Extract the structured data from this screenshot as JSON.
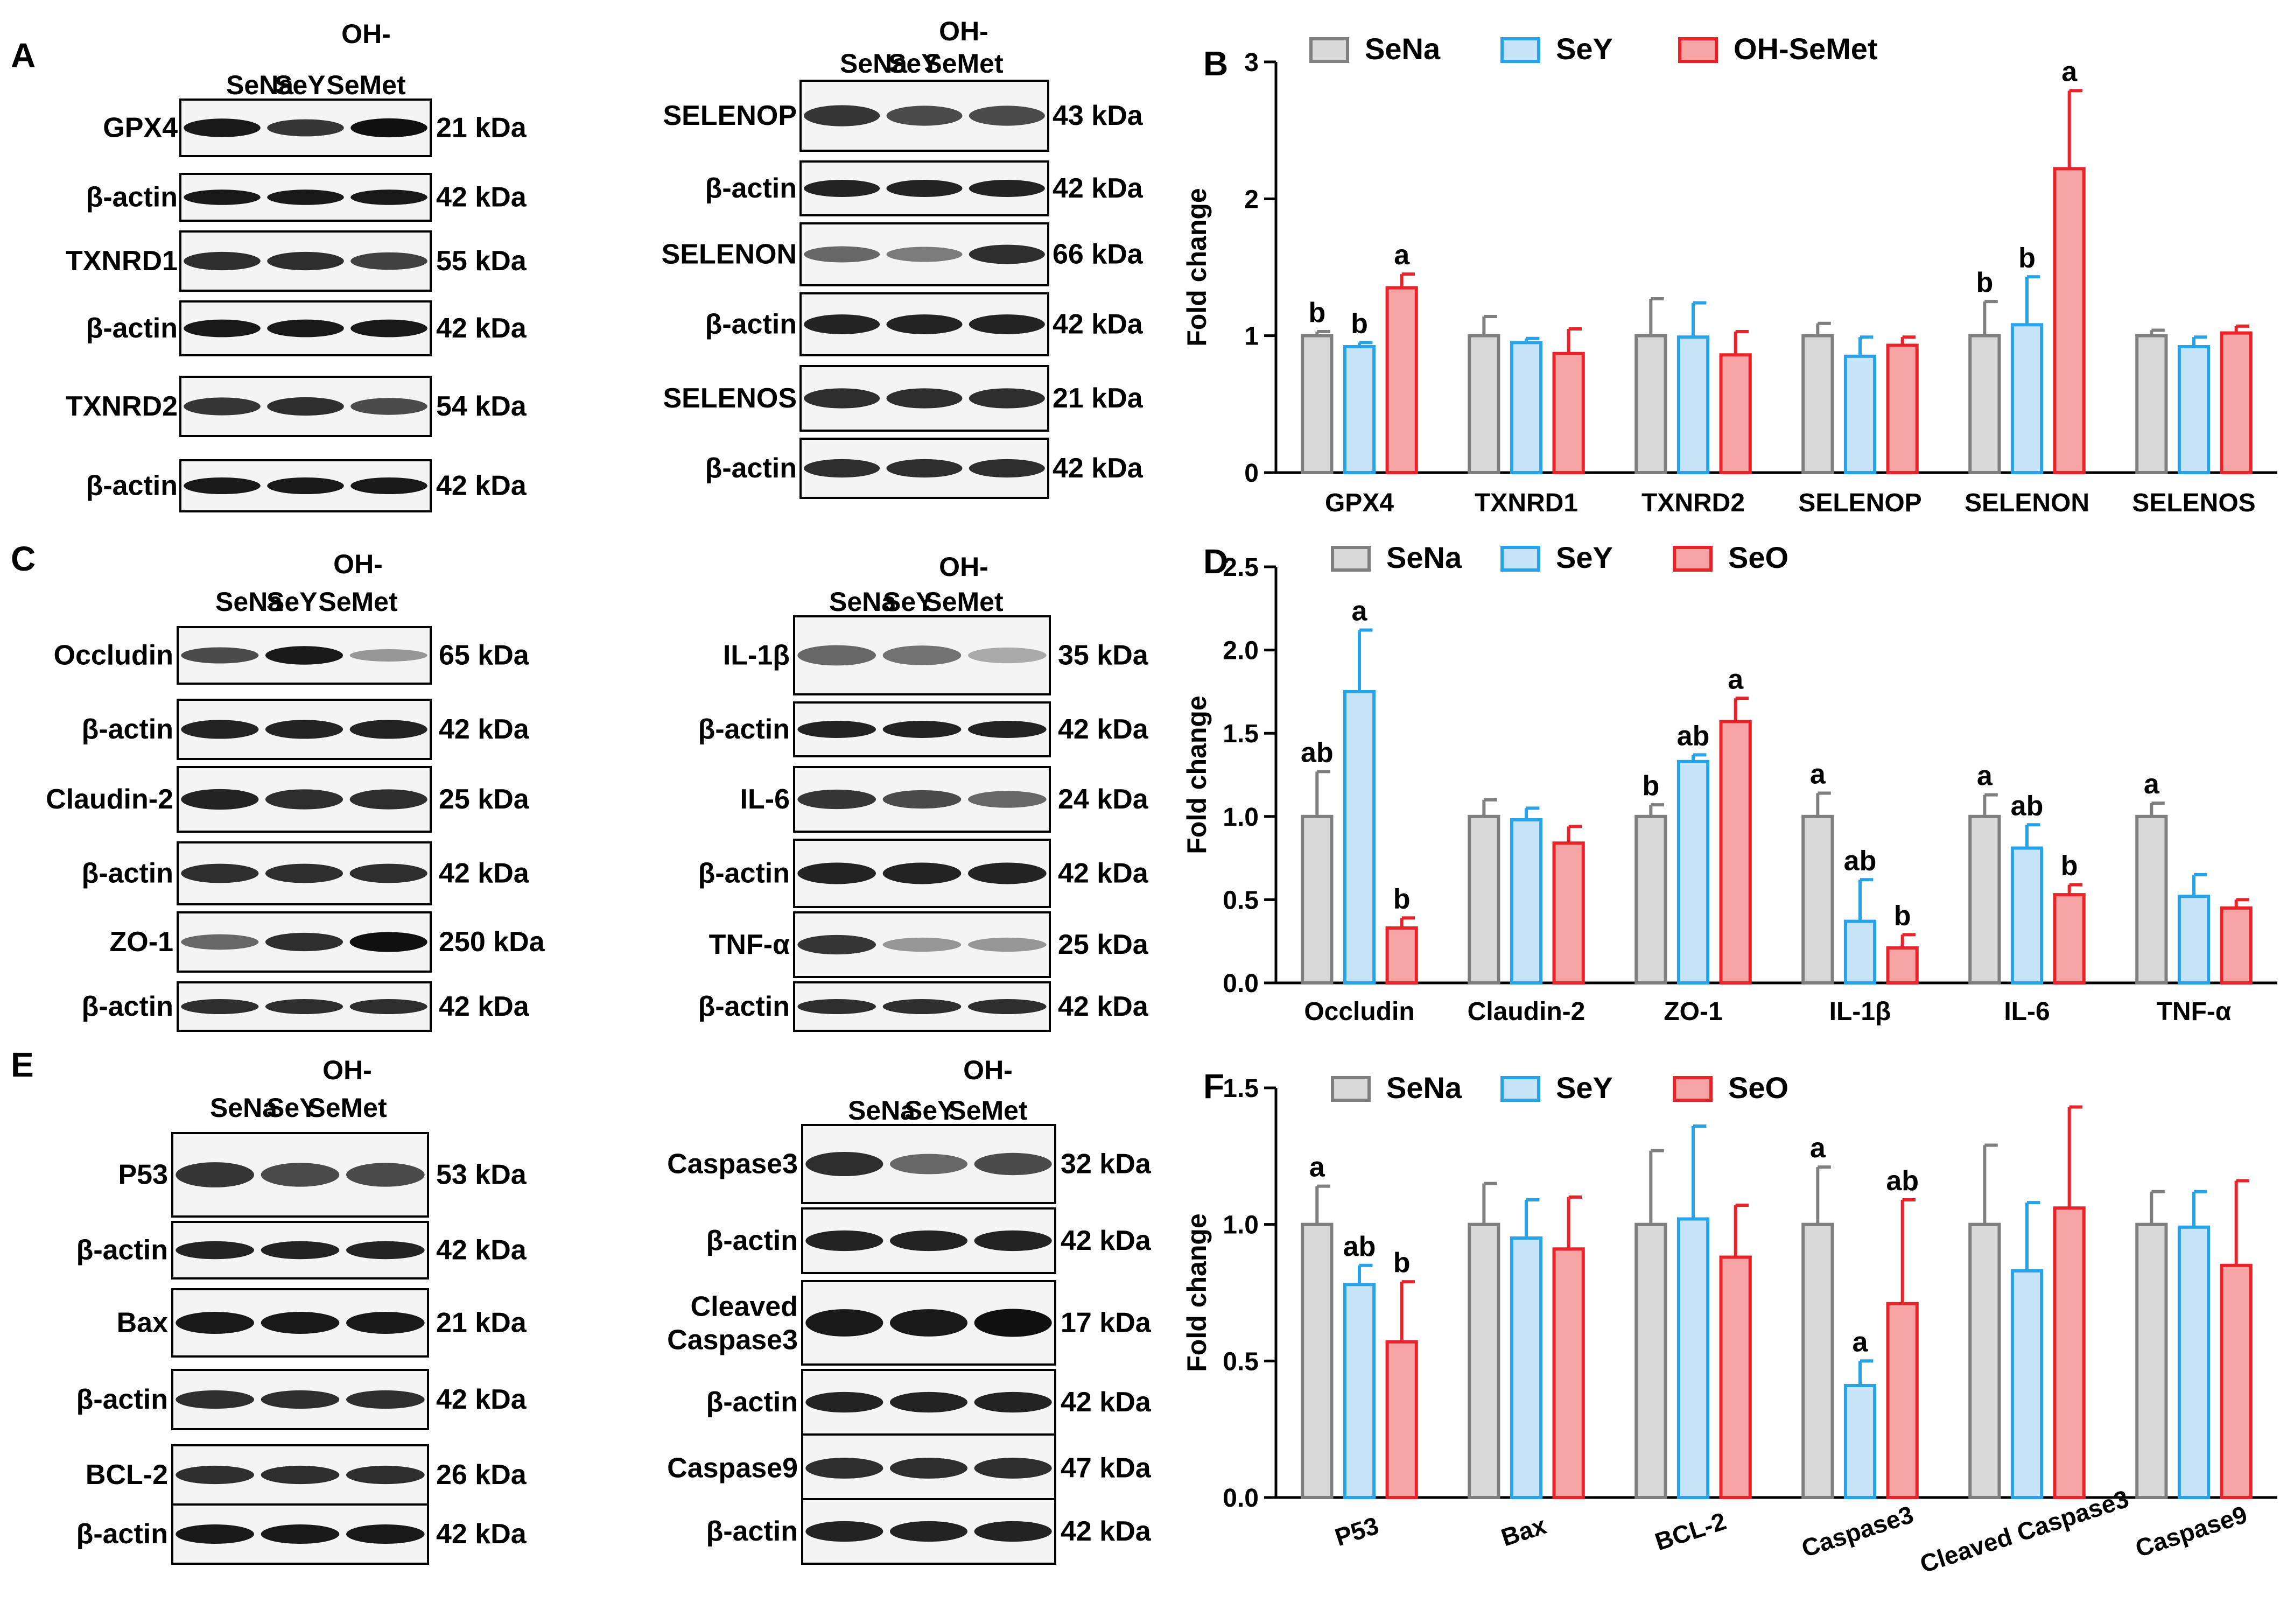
{
  "colors": {
    "sena": "#7f7f7f",
    "sena_fill": "#d9d9d9",
    "sey": "#29a3e8",
    "sey_fill": "#c6e3f7",
    "third": "#e8242a",
    "third_fill": "#f6a4a4",
    "band": "#101010",
    "blot_bg": "#f4f4f4"
  },
  "blots": [
    {
      "panel": "A",
      "header": [
        "SeNa",
        "SeY",
        "OH-",
        "SeMet"
      ],
      "rows": [
        {
          "label": "GPX4",
          "kda": "21 kDa",
          "int": [
            0.95,
            0.8,
            1.0
          ]
        },
        {
          "label": "β-actin",
          "kda": "42 kDa",
          "int": [
            0.95,
            0.95,
            0.95
          ]
        },
        {
          "label": "TXNRD1",
          "kda": "55 kDa",
          "int": [
            0.85,
            0.85,
            0.75
          ]
        },
        {
          "label": "β-actin",
          "kda": "42 kDa",
          "int": [
            0.95,
            0.95,
            0.95
          ]
        },
        {
          "label": "TXNRD2",
          "kda": "54 kDa",
          "int": [
            0.8,
            0.85,
            0.7
          ]
        },
        {
          "label": "β-actin",
          "kda": "42 kDa",
          "int": [
            0.95,
            0.95,
            0.95
          ]
        }
      ]
    },
    {
      "panel": "",
      "header": [
        "SeNa",
        "SeY",
        "OH-",
        "SeMet"
      ],
      "rows": [
        {
          "label": "SELENOP",
          "kda": "43 kDa",
          "int": [
            0.8,
            0.7,
            0.7
          ]
        },
        {
          "label": "β-actin",
          "kda": "42 kDa",
          "int": [
            0.9,
            0.9,
            0.9
          ]
        },
        {
          "label": "SELENON",
          "kda": "66 kDa",
          "int": [
            0.55,
            0.45,
            0.85
          ]
        },
        {
          "label": "β-actin",
          "kda": "42 kDa",
          "int": [
            0.9,
            0.9,
            0.9
          ]
        },
        {
          "label": "SELENOS",
          "kda": "21 kDa",
          "int": [
            0.85,
            0.85,
            0.85
          ]
        },
        {
          "label": "β-actin",
          "kda": "42 kDa",
          "int": [
            0.85,
            0.85,
            0.85
          ]
        }
      ]
    },
    {
      "panel": "C",
      "header": [
        "SeNa",
        "SeY",
        "OH-",
        "SeMet"
      ],
      "rows": [
        {
          "label": "Occludin",
          "kda": "65 kDa",
          "int": [
            0.7,
            0.95,
            0.3
          ]
        },
        {
          "label": "β-actin",
          "kda": "42 kDa",
          "int": [
            0.9,
            0.9,
            0.9
          ]
        },
        {
          "label": "Claudin-2",
          "kda": "25 kDa",
          "int": [
            0.9,
            0.85,
            0.85
          ]
        },
        {
          "label": "β-actin",
          "kda": "42 kDa",
          "int": [
            0.85,
            0.85,
            0.85
          ]
        },
        {
          "label": "ZO-1",
          "kda": "250 kDa",
          "int": [
            0.55,
            0.85,
            1.0
          ]
        },
        {
          "label": "β-actin",
          "kda": "42 kDa",
          "int": [
            0.85,
            0.85,
            0.85
          ]
        }
      ]
    },
    {
      "panel": "",
      "header": [
        "SeNa",
        "SeY",
        "OH-",
        "SeMet"
      ],
      "rows": [
        {
          "label": "IL-1β",
          "kda": "35 kDa",
          "int": [
            0.55,
            0.5,
            0.2
          ]
        },
        {
          "label": "β-actin",
          "kda": "42 kDa",
          "int": [
            0.9,
            0.9,
            0.9
          ]
        },
        {
          "label": "IL-6",
          "kda": "24 kDa",
          "int": [
            0.8,
            0.7,
            0.55
          ]
        },
        {
          "label": "β-actin",
          "kda": "42 kDa",
          "int": [
            0.9,
            0.9,
            0.9
          ]
        },
        {
          "label": "TNF-α",
          "kda": "25 kDa",
          "int": [
            0.8,
            0.3,
            0.3
          ]
        },
        {
          "label": "β-actin",
          "kda": "42 kDa",
          "int": [
            0.85,
            0.85,
            0.85
          ]
        }
      ]
    },
    {
      "panel": "E",
      "header": [
        "SeNa",
        "SeY",
        "OH-",
        "SeMet"
      ],
      "rows": [
        {
          "label": "P53",
          "kda": "53 kDa",
          "int": [
            0.8,
            0.7,
            0.7
          ]
        },
        {
          "label": "β-actin",
          "kda": "42 kDa",
          "int": [
            0.9,
            0.9,
            0.9
          ]
        },
        {
          "label": "Bax",
          "kda": "21 kDa",
          "int": [
            0.95,
            0.95,
            0.95
          ]
        },
        {
          "label": "β-actin",
          "kda": "42 kDa",
          "int": [
            0.85,
            0.85,
            0.85
          ]
        },
        {
          "label": "BCL-2",
          "kda": "26 kDa",
          "int": [
            0.85,
            0.85,
            0.85
          ]
        },
        {
          "label": "β-actin",
          "kda": "42 kDa",
          "int": [
            0.95,
            0.95,
            0.95
          ]
        }
      ]
    },
    {
      "panel": "",
      "header": [
        "SeNa",
        "SeY",
        "OH-",
        "SeMet"
      ],
      "rows": [
        {
          "label": "Caspase3",
          "kda": "32 kDa",
          "int": [
            0.85,
            0.55,
            0.7
          ]
        },
        {
          "label": "β-actin",
          "kda": "42 kDa",
          "int": [
            0.9,
            0.9,
            0.9
          ]
        },
        {
          "label": "Cleaved Caspase3",
          "kda": "17 kDa",
          "int": [
            0.95,
            0.95,
            1.0
          ]
        },
        {
          "label": "β-actin",
          "kda": "42 kDa",
          "int": [
            0.9,
            0.9,
            0.9
          ]
        },
        {
          "label": "Caspase9",
          "kda": "47 kDa",
          "int": [
            0.85,
            0.85,
            0.85
          ]
        },
        {
          "label": "β-actin",
          "kda": "42 kDa",
          "int": [
            0.9,
            0.9,
            0.9
          ]
        }
      ]
    }
  ],
  "chart_data": [
    {
      "panel": "B",
      "type": "bar",
      "ylabel": "Fold change",
      "ylim": [
        0,
        3
      ],
      "yticks": [
        0,
        1,
        2,
        3
      ],
      "legend": [
        "SeNa",
        "SeY",
        "OH-SeMet"
      ],
      "categories": [
        "GPX4",
        "TXNRD1",
        "TXNRD2",
        "SELENOP",
        "SELENON",
        "SELENOS"
      ],
      "series": [
        {
          "name": "SeNa",
          "values": [
            1.0,
            1.0,
            1.0,
            1.0,
            1.0,
            1.0
          ],
          "err": [
            0.03,
            0.14,
            0.27,
            0.09,
            0.25,
            0.04
          ],
          "labels": [
            "b",
            "",
            "",
            "",
            "b",
            ""
          ]
        },
        {
          "name": "SeY",
          "values": [
            0.92,
            0.95,
            0.99,
            0.85,
            1.08,
            0.92
          ],
          "err": [
            0.03,
            0.03,
            0.25,
            0.14,
            0.35,
            0.07
          ],
          "labels": [
            "b",
            "",
            "",
            "",
            "b",
            ""
          ]
        },
        {
          "name": "OH-SeMet",
          "values": [
            1.35,
            0.87,
            0.86,
            0.93,
            2.22,
            1.02
          ],
          "err": [
            0.1,
            0.18,
            0.17,
            0.06,
            0.57,
            0.05
          ],
          "labels": [
            "a",
            "",
            "",
            "",
            "a",
            ""
          ]
        }
      ]
    },
    {
      "panel": "D",
      "type": "bar",
      "ylabel": "Fold change",
      "ylim": [
        0,
        2.5
      ],
      "yticks": [
        0.0,
        0.5,
        1.0,
        1.5,
        2.0,
        2.5
      ],
      "legend": [
        "SeNa",
        "SeY",
        "SeO"
      ],
      "categories": [
        "Occludin",
        "Claudin-2",
        "ZO-1",
        "IL-1β",
        "IL-6",
        "TNF-α"
      ],
      "series": [
        {
          "name": "SeNa",
          "values": [
            1.0,
            1.0,
            1.0,
            1.0,
            1.0,
            1.0
          ],
          "err": [
            0.27,
            0.1,
            0.07,
            0.14,
            0.13,
            0.08
          ],
          "labels": [
            "ab",
            "",
            "b",
            "a",
            "a",
            "a"
          ]
        },
        {
          "name": "SeY",
          "values": [
            1.75,
            0.98,
            1.33,
            0.37,
            0.81,
            0.52
          ],
          "err": [
            0.37,
            0.07,
            0.04,
            0.25,
            0.14,
            0.13
          ],
          "labels": [
            "a",
            "",
            "ab",
            "ab",
            "ab",
            ""
          ]
        },
        {
          "name": "SeO",
          "values": [
            0.33,
            0.84,
            1.57,
            0.21,
            0.53,
            0.45
          ],
          "err": [
            0.06,
            0.1,
            0.14,
            0.08,
            0.06,
            0.05
          ],
          "labels": [
            "b",
            "",
            "a",
            "b",
            "b",
            ""
          ]
        }
      ]
    },
    {
      "panel": "F",
      "type": "bar",
      "ylabel": "Fold change",
      "ylim": [
        0,
        1.5
      ],
      "yticks": [
        0.0,
        0.5,
        1.0,
        1.5
      ],
      "legend": [
        "SeNa",
        "SeY",
        "SeO"
      ],
      "categories": [
        "P53",
        "Bax",
        "BCL-2",
        "Caspase3",
        "Cleaved Caspase3",
        "Caspase9"
      ],
      "series": [
        {
          "name": "SeNa",
          "values": [
            1.0,
            1.0,
            1.0,
            1.0,
            1.0,
            1.0
          ],
          "err": [
            0.14,
            0.15,
            0.27,
            0.21,
            0.29,
            0.12
          ],
          "labels": [
            "a",
            "",
            "",
            "a",
            "",
            ""
          ]
        },
        {
          "name": "SeY",
          "values": [
            0.78,
            0.95,
            1.02,
            0.41,
            0.83,
            0.99
          ],
          "err": [
            0.07,
            0.14,
            0.34,
            0.09,
            0.25,
            0.13
          ],
          "labels": [
            "ab",
            "",
            "",
            "a",
            "",
            ""
          ]
        },
        {
          "name": "SeO",
          "values": [
            0.57,
            0.91,
            0.88,
            0.71,
            1.06,
            0.85
          ],
          "err": [
            0.22,
            0.19,
            0.19,
            0.38,
            0.37,
            0.31
          ],
          "labels": [
            "b",
            "",
            "",
            "ab",
            "",
            ""
          ]
        }
      ]
    }
  ]
}
